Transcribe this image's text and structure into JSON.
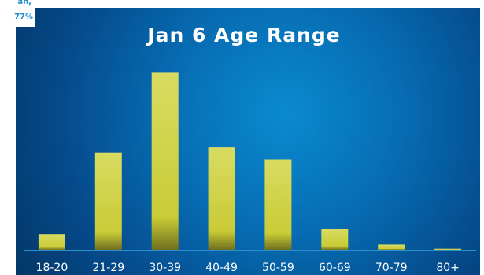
{
  "corner_label": {
    "line1": "an,",
    "line2": "77%"
  },
  "chart_data": {
    "type": "bar",
    "title": "Jan 6 Age Range",
    "categories": [
      "18-20",
      "21-29",
      "30-39",
      "40-49",
      "50-59",
      "60-69",
      "70-79",
      "80+"
    ],
    "values": [
      4.5,
      28,
      51,
      29.5,
      26,
      6,
      1.5,
      0.3
    ],
    "xlabel": "",
    "ylabel": "",
    "ylim": [
      0,
      52
    ],
    "grid": false,
    "legend": "none",
    "colors": {
      "bar_top": "#d9db62",
      "bar_mid": "#c9cb36",
      "bar_bottom": "#6f7020",
      "background": "#076cb2",
      "text": "#ffffff"
    }
  }
}
